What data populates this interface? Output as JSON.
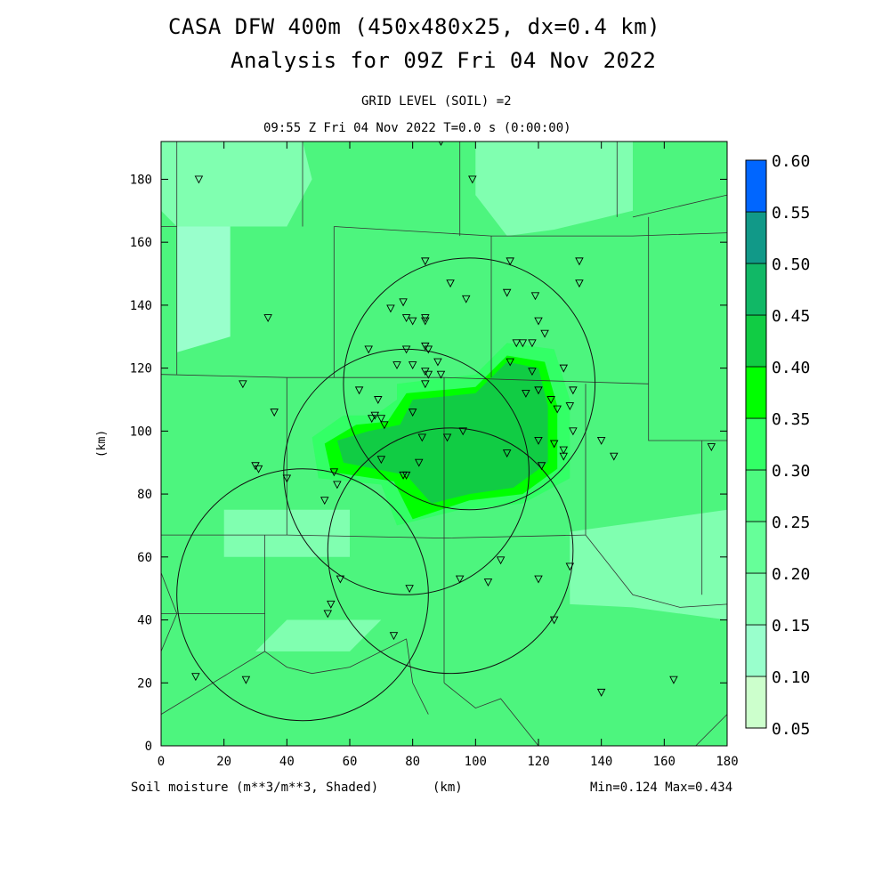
{
  "header": {
    "title_line1": "CASA DFW 400m (450x480x25, dx=0.4 km)",
    "title_line2": "Analysis for 09Z Fri 04 Nov 2022",
    "grid_level": "GRID LEVEL (SOIL) =2",
    "time_line": "09:55 Z Fri 04 Nov 2022   T=0.0 s (0:00:00)"
  },
  "footer": {
    "field_label": "Soil moisture (m**3/m**3, Shaded)",
    "x_unit": "(km)",
    "minmax": "Min=0.124 Max=0.434"
  },
  "chart_data": {
    "type": "heatmap",
    "title": "CASA DFW 400m (450x480x25, dx=0.4 km)",
    "xlabel": "(km)",
    "ylabel": "(km)",
    "xlim": [
      0,
      180
    ],
    "ylim": [
      0,
      192
    ],
    "x_ticks": [
      0,
      20,
      40,
      60,
      80,
      100,
      120,
      140,
      160,
      180
    ],
    "y_ticks": [
      0,
      20,
      40,
      60,
      80,
      100,
      120,
      140,
      160,
      180
    ],
    "x_tick_labels": [
      "0",
      "20",
      "40",
      "60",
      "80",
      "100",
      "120",
      "140",
      "160",
      "180"
    ],
    "y_tick_labels": [
      "0",
      "20",
      "40",
      "60",
      "80",
      "100",
      "120",
      "140",
      "160",
      "180"
    ],
    "colorbar": {
      "levels": [
        0.05,
        0.1,
        0.15,
        0.2,
        0.25,
        0.3,
        0.35,
        0.4,
        0.45,
        0.5,
        0.55,
        0.6
      ],
      "labels": [
        "0.05",
        "0.10",
        "0.15",
        "0.20",
        "0.25",
        "0.30",
        "0.35",
        "0.40",
        "0.45",
        "0.50",
        "0.55",
        "0.60"
      ],
      "colors": [
        "#ccffcc",
        "#99ffcc",
        "#80ffb0",
        "#66ff99",
        "#4dfa80",
        "#33ff66",
        "#00ff00",
        "#11cc44",
        "#11b866",
        "#119988",
        "#0066ff"
      ]
    },
    "min": 0.124,
    "max": 0.434,
    "background_color": "#4df57e",
    "regions": [
      {
        "color": "#99ffcc",
        "points": [
          [
            5,
            165
          ],
          [
            22,
            165
          ],
          [
            22,
            130
          ],
          [
            5,
            125
          ]
        ]
      },
      {
        "color": "#80ffb0",
        "points": [
          [
            0,
            192
          ],
          [
            45,
            192
          ],
          [
            48,
            180
          ],
          [
            40,
            165
          ],
          [
            5,
            165
          ],
          [
            0,
            170
          ]
        ]
      },
      {
        "color": "#80ffb0",
        "points": [
          [
            100,
            192
          ],
          [
            150,
            192
          ],
          [
            150,
            170
          ],
          [
            125,
            164
          ],
          [
            110,
            162
          ],
          [
            100,
            175
          ]
        ]
      },
      {
        "color": "#80ffb0",
        "points": [
          [
            130,
            68
          ],
          [
            180,
            75
          ],
          [
            180,
            40
          ],
          [
            150,
            44
          ],
          [
            130,
            45
          ]
        ]
      },
      {
        "color": "#80ffb0",
        "points": [
          [
            30,
            30
          ],
          [
            60,
            30
          ],
          [
            70,
            40
          ],
          [
            40,
            40
          ]
        ]
      },
      {
        "color": "#80ffb0",
        "points": [
          [
            20,
            75
          ],
          [
            60,
            75
          ],
          [
            60,
            60
          ],
          [
            20,
            60
          ]
        ]
      },
      {
        "color": "#33ff66",
        "points": [
          [
            75,
            115
          ],
          [
            100,
            118
          ],
          [
            110,
            128
          ],
          [
            125,
            126
          ],
          [
            130,
            110
          ],
          [
            130,
            85
          ],
          [
            115,
            77
          ],
          [
            95,
            75
          ],
          [
            75,
            70
          ],
          [
            70,
            83
          ],
          [
            50,
            85
          ],
          [
            48,
            98
          ],
          [
            58,
            105
          ],
          [
            68,
            105
          ],
          [
            75,
            110
          ]
        ]
      },
      {
        "color": "#00ff00",
        "points": [
          [
            78,
            112
          ],
          [
            100,
            114
          ],
          [
            110,
            124
          ],
          [
            122,
            122
          ],
          [
            126,
            108
          ],
          [
            126,
            88
          ],
          [
            115,
            80
          ],
          [
            98,
            78
          ],
          [
            80,
            72
          ],
          [
            74,
            84
          ],
          [
            54,
            87
          ],
          [
            52,
            96
          ],
          [
            62,
            102
          ],
          [
            72,
            103
          ]
        ]
      },
      {
        "color": "#11cc44",
        "points": [
          [
            80,
            110
          ],
          [
            100,
            112
          ],
          [
            110,
            122
          ],
          [
            120,
            120
          ],
          [
            123,
            108
          ],
          [
            123,
            90
          ],
          [
            112,
            82
          ],
          [
            98,
            80
          ],
          [
            86,
            77
          ],
          [
            78,
            86
          ],
          [
            58,
            90
          ],
          [
            56,
            97
          ],
          [
            66,
            100
          ],
          [
            76,
            102
          ]
        ]
      }
    ],
    "county_lines": [
      [
        [
          5,
          192
        ],
        [
          5,
          118
        ]
      ],
      [
        [
          45,
          192
        ],
        [
          45,
          165
        ]
      ],
      [
        [
          48,
          165
        ],
        [
          48,
          165
        ]
      ],
      [
        [
          0,
          165
        ],
        [
          5,
          165
        ]
      ],
      [
        [
          55,
          165
        ],
        [
          105,
          162
        ],
        [
          150,
          162
        ],
        [
          180,
          163
        ]
      ],
      [
        [
          95,
          192
        ],
        [
          95,
          162
        ]
      ],
      [
        [
          145,
          192
        ],
        [
          145,
          168
        ]
      ],
      [
        [
          150,
          168
        ],
        [
          180,
          175
        ]
      ],
      [
        [
          0,
          118
        ],
        [
          40,
          117
        ],
        [
          90,
          117
        ],
        [
          155,
          115
        ]
      ],
      [
        [
          55,
          165
        ],
        [
          55,
          117
        ]
      ],
      [
        [
          105,
          162
        ],
        [
          105,
          117
        ]
      ],
      [
        [
          155,
          168
        ],
        [
          155,
          115
        ]
      ],
      [
        [
          155,
          115
        ],
        [
          155,
          97
        ],
        [
          180,
          97
        ]
      ],
      [
        [
          40,
          117
        ],
        [
          40,
          67
        ]
      ],
      [
        [
          0,
          67
        ],
        [
          40,
          67
        ],
        [
          90,
          66
        ],
        [
          135,
          67
        ]
      ],
      [
        [
          90,
          117
        ],
        [
          90,
          66
        ]
      ],
      [
        [
          135,
          115
        ],
        [
          135,
          67
        ]
      ],
      [
        [
          135,
          67
        ],
        [
          150,
          48
        ],
        [
          165,
          44
        ],
        [
          180,
          45
        ]
      ],
      [
        [
          172,
          97
        ],
        [
          172,
          48
        ]
      ],
      [
        [
          33,
          67
        ],
        [
          33,
          30
        ]
      ],
      [
        [
          33,
          42
        ],
        [
          0,
          42
        ]
      ],
      [
        [
          0,
          55
        ],
        [
          5,
          42
        ],
        [
          0,
          30
        ]
      ],
      [
        [
          33,
          30
        ],
        [
          0,
          10
        ]
      ],
      [
        [
          33,
          30
        ],
        [
          40,
          25
        ],
        [
          48,
          23
        ],
        [
          60,
          25
        ],
        [
          78,
          34
        ]
      ],
      [
        [
          78,
          34
        ],
        [
          80,
          20
        ],
        [
          85,
          10
        ]
      ],
      [
        [
          90,
          66
        ],
        [
          90,
          20
        ]
      ],
      [
        [
          90,
          20
        ],
        [
          100,
          12
        ],
        [
          108,
          15
        ],
        [
          120,
          0
        ]
      ],
      [
        [
          170,
          0
        ],
        [
          180,
          10
        ]
      ]
    ],
    "radar_rings": [
      {
        "cx": 98,
        "cy": 115,
        "r": 40
      },
      {
        "cx": 78,
        "cy": 87,
        "r": 39
      },
      {
        "cx": 92,
        "cy": 62,
        "r": 39
      },
      {
        "cx": 45,
        "cy": 48,
        "r": 40
      }
    ],
    "stations": [
      [
        12,
        180
      ],
      [
        89,
        192
      ],
      [
        99,
        180
      ],
      [
        34,
        136
      ],
      [
        26,
        115
      ],
      [
        36,
        106
      ],
      [
        30,
        89
      ],
      [
        31,
        88
      ],
      [
        40,
        85
      ],
      [
        52,
        78
      ],
      [
        55,
        87
      ],
      [
        56,
        83
      ],
      [
        57,
        53
      ],
      [
        53,
        42
      ],
      [
        54,
        45
      ],
      [
        74,
        35
      ],
      [
        11,
        22
      ],
      [
        27,
        21
      ],
      [
        84,
        154
      ],
      [
        92,
        147
      ],
      [
        97,
        142
      ],
      [
        110,
        144
      ],
      [
        111,
        154
      ],
      [
        119,
        143
      ],
      [
        120,
        135
      ],
      [
        122,
        131
      ],
      [
        133,
        154
      ],
      [
        133,
        147
      ],
      [
        73,
        139
      ],
      [
        77,
        141
      ],
      [
        78,
        136
      ],
      [
        80,
        135
      ],
      [
        84,
        136
      ],
      [
        84,
        135
      ],
      [
        66,
        126
      ],
      [
        78,
        126
      ],
      [
        84,
        127
      ],
      [
        85,
        126
      ],
      [
        88,
        122
      ],
      [
        75,
        121
      ],
      [
        80,
        121
      ],
      [
        84,
        119
      ],
      [
        85,
        118
      ],
      [
        89,
        118
      ],
      [
        84,
        115
      ],
      [
        63,
        113
      ],
      [
        69,
        110
      ],
      [
        68,
        105
      ],
      [
        67,
        104
      ],
      [
        70,
        104
      ],
      [
        71,
        102
      ],
      [
        80,
        106
      ],
      [
        83,
        98
      ],
      [
        91,
        98
      ],
      [
        96,
        100
      ],
      [
        70,
        91
      ],
      [
        77,
        86
      ],
      [
        78,
        86
      ],
      [
        82,
        90
      ],
      [
        113,
        128
      ],
      [
        115,
        128
      ],
      [
        118,
        128
      ],
      [
        111,
        122
      ],
      [
        118,
        119
      ],
      [
        128,
        120
      ],
      [
        120,
        113
      ],
      [
        116,
        112
      ],
      [
        124,
        110
      ],
      [
        126,
        107
      ],
      [
        130,
        108
      ],
      [
        131,
        113
      ],
      [
        120,
        97
      ],
      [
        125,
        96
      ],
      [
        128,
        94
      ],
      [
        128,
        92
      ],
      [
        131,
        100
      ],
      [
        140,
        97
      ],
      [
        144,
        92
      ],
      [
        110,
        93
      ],
      [
        121,
        89
      ],
      [
        175,
        95
      ],
      [
        108,
        59
      ],
      [
        104,
        52
      ],
      [
        95,
        53
      ],
      [
        79,
        50
      ],
      [
        120,
        53
      ],
      [
        130,
        57
      ],
      [
        125,
        40
      ],
      [
        140,
        17
      ],
      [
        163,
        21
      ]
    ]
  }
}
